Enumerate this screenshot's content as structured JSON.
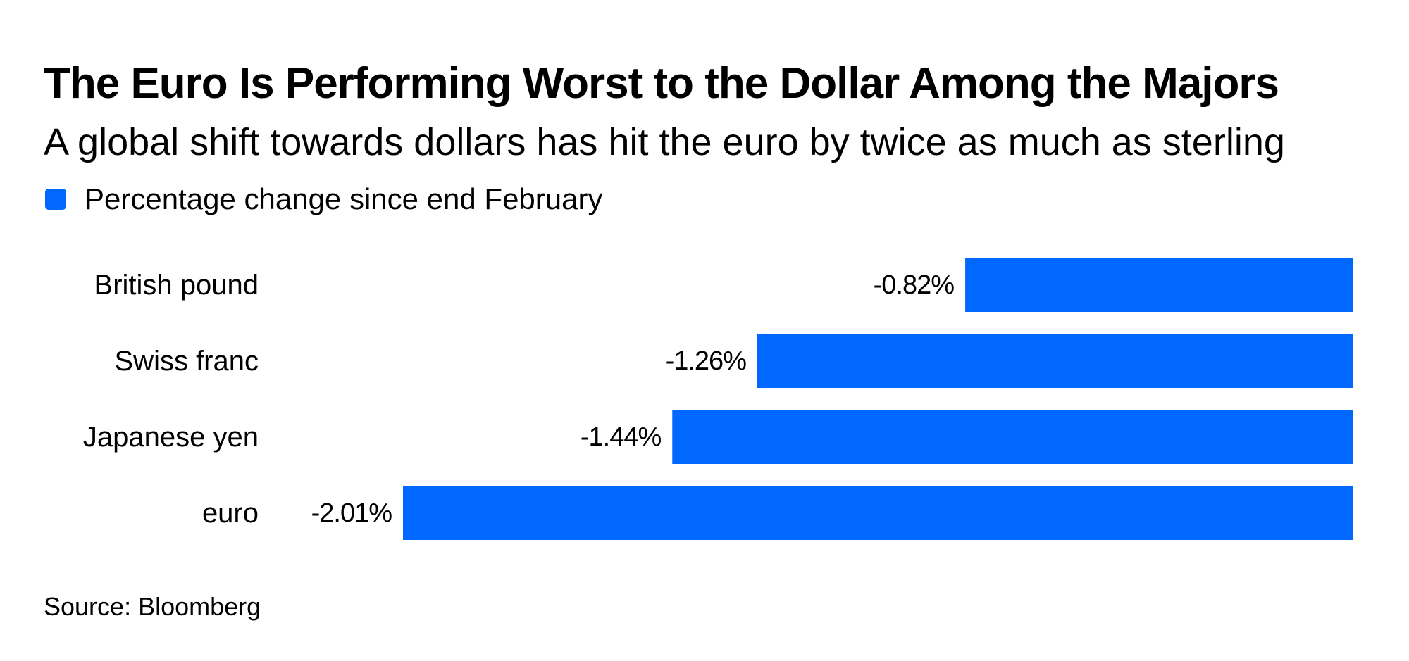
{
  "colors": {
    "bar": "#0068ff",
    "text": "#000000",
    "background": "#ffffff"
  },
  "legend": {
    "icon": "square-swatch-icon"
  },
  "chart_data": {
    "type": "bar",
    "orientation": "horizontal",
    "title": "The Euro Is Performing Worst to the Dollar Among the Majors",
    "subtitle": "A global shift towards dollars has hit the euro by twice as much as sterling",
    "legend": [
      "Percentage change since end February"
    ],
    "categories": [
      "British pound",
      "Swiss franc",
      "Japanese yen",
      "euro"
    ],
    "series": [
      {
        "name": "Percentage change since end February",
        "values": [
          -0.82,
          -1.26,
          -1.44,
          -2.01
        ],
        "labels": [
          "-0.82%",
          "-1.26%",
          "-1.44%",
          "-2.01%"
        ]
      }
    ],
    "xlim": [
      -2.01,
      0
    ],
    "xlabel": "",
    "ylabel": "",
    "grid": false,
    "source": "Source: Bloomberg"
  }
}
